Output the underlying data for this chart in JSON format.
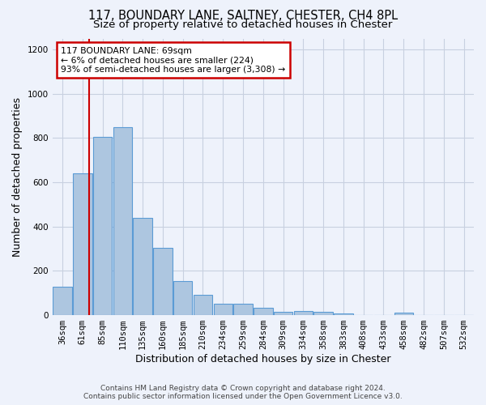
{
  "title": "117, BOUNDARY LANE, SALTNEY, CHESTER, CH4 8PL",
  "subtitle": "Size of property relative to detached houses in Chester",
  "xlabel": "Distribution of detached houses by size in Chester",
  "ylabel": "Number of detached properties",
  "categories": [
    "36sqm",
    "61sqm",
    "85sqm",
    "110sqm",
    "135sqm",
    "160sqm",
    "185sqm",
    "210sqm",
    "234sqm",
    "259sqm",
    "284sqm",
    "309sqm",
    "334sqm",
    "358sqm",
    "383sqm",
    "408sqm",
    "433sqm",
    "458sqm",
    "482sqm",
    "507sqm",
    "532sqm"
  ],
  "values": [
    130,
    640,
    805,
    850,
    440,
    305,
    155,
    92,
    50,
    50,
    35,
    15,
    20,
    15,
    8,
    0,
    0,
    10,
    0,
    0,
    0
  ],
  "bar_color": "#adc6e0",
  "bar_edge_color": "#5b9bd5",
  "property_line_x": 1.33,
  "property_sqm": 69,
  "annotation_line1": "117 BOUNDARY LANE: 69sqm",
  "annotation_line2": "← 6% of detached houses are smaller (224)",
  "annotation_line3": "93% of semi-detached houses are larger (3,308) →",
  "annotation_box_color": "#cc0000",
  "ylim": [
    0,
    1250
  ],
  "yticks": [
    0,
    200,
    400,
    600,
    800,
    1000,
    1200
  ],
  "footnote1": "Contains HM Land Registry data © Crown copyright and database right 2024.",
  "footnote2": "Contains public sector information licensed under the Open Government Licence v3.0.",
  "bg_color": "#eef2fb",
  "grid_color": "#c8d0e0",
  "title_fontsize": 10.5,
  "subtitle_fontsize": 9.5,
  "ylabel_fontsize": 9,
  "xlabel_fontsize": 9,
  "tick_fontsize": 7.5,
  "footnote_fontsize": 6.5
}
